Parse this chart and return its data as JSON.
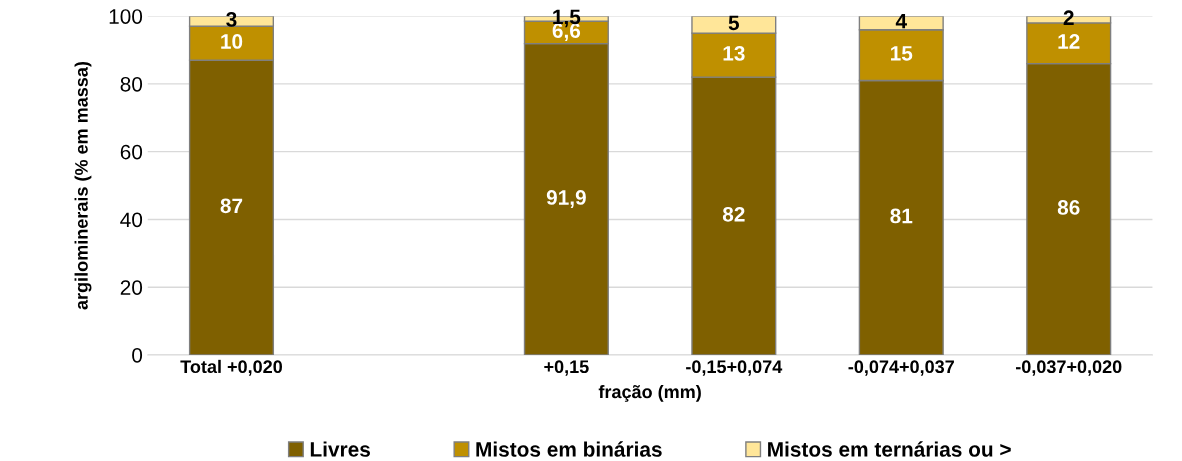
{
  "chart_data": {
    "type": "bar",
    "stacked": true,
    "xlabel": "fração (mm)",
    "ylabel": "argilominerais (% em massa)",
    "categories": [
      "Total +0,020",
      null,
      "+0,15",
      "-0,15+0,074",
      "-0,074+0,037",
      "-0,037+0,020"
    ],
    "series": [
      {
        "name": "Livres",
        "color": "#7f6000",
        "values": [
          87,
          null,
          91.9,
          82,
          81,
          86
        ],
        "value_labels": [
          "87",
          null,
          "91,9",
          "82",
          "81",
          "86"
        ]
      },
      {
        "name": "Mistos em binárias",
        "color": "#bf9000",
        "values": [
          10,
          null,
          6.6,
          13,
          15,
          12
        ],
        "value_labels": [
          "10",
          null,
          "6,6",
          "13",
          "15",
          "12"
        ]
      },
      {
        "name": "Mistos em ternárias ou >",
        "color": "#ffe699",
        "values": [
          3,
          null,
          1.5,
          5,
          4,
          2
        ],
        "value_labels": [
          "3",
          null,
          "1,5",
          "5",
          "4",
          "2"
        ]
      }
    ],
    "ylim": [
      0,
      100
    ],
    "yticks": [
      0,
      20,
      40,
      60,
      80,
      100
    ],
    "grid": "y",
    "legend": "bottom"
  }
}
